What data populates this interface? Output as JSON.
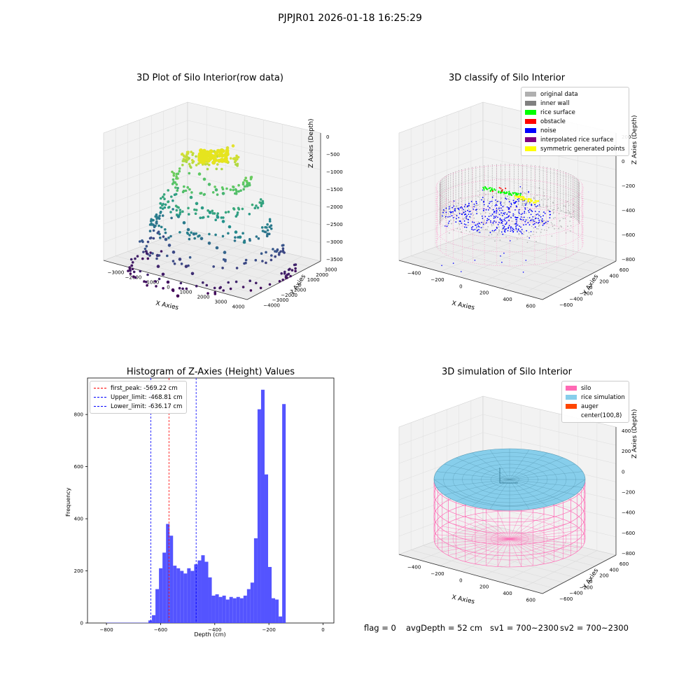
{
  "figure": {
    "suptitle": "PJPJR01 2026-01-18 16:25:29",
    "status": {
      "flag": "flag = 0",
      "avg_depth": "avgDepth = 52 cm",
      "sv1": "sv1 = 700~2300",
      "sv2": "sv2 = 700~2300"
    }
  },
  "colors": {
    "original_data": "#b0b0b0",
    "inner_wall": "#808080",
    "rice_surface": "#00ff00",
    "obstacle": "#ff0000",
    "noise": "#0000ff",
    "interpolated_rice_surface": "#800080",
    "symmetric_generated_points": "#ffff00",
    "silo": "#ff69b4",
    "rice_simulation": "#87ceeb",
    "auger": "#ff4500",
    "histogram_bar": "#4b4bff",
    "first_peak_line": "#ff0000",
    "limit_line": "#0000ff"
  },
  "chart_data": [
    {
      "type": "scatter",
      "title": "3D Plot of Silo Interior(row data)",
      "xlabel": "X Axies",
      "ylabel": "Y Axies",
      "zlabel": "Z Axies (Depth)",
      "x_ticks": [
        "−3000",
        "−2000",
        "−1000",
        "0",
        "1000",
        "2000",
        "3000",
        "4000"
      ],
      "y_ticks": [
        "−4000",
        "−3000",
        "−2000",
        "−1000",
        "0",
        "1000",
        "2000",
        "3000"
      ],
      "z_ticks": [
        "−3500",
        "−3000",
        "−2500",
        "−2000",
        "−1500",
        "−1000",
        "−500",
        "0"
      ],
      "colormap": "viridis",
      "points": [
        [
          -300,
          600,
          -300
        ],
        [
          0,
          700,
          -250
        ],
        [
          200,
          800,
          -200
        ],
        [
          400,
          900,
          -150
        ],
        [
          -100,
          500,
          -400
        ],
        [
          -800,
          300,
          -900
        ],
        [
          -500,
          200,
          -1000
        ],
        [
          -200,
          100,
          -1100
        ],
        [
          200,
          0,
          -1200
        ],
        [
          600,
          -100,
          -1250
        ],
        [
          -1000,
          0,
          -1500
        ],
        [
          -600,
          -200,
          -1600
        ],
        [
          -200,
          -400,
          -1650
        ],
        [
          300,
          -600,
          -1700
        ],
        [
          800,
          -800,
          -1750
        ],
        [
          1200,
          -1000,
          -1800
        ],
        [
          1700,
          -1300,
          -1850
        ],
        [
          2200,
          -1600,
          -1900
        ],
        [
          2600,
          -1900,
          -1950
        ],
        [
          3000,
          -2200,
          -2000
        ],
        [
          -1400,
          -300,
          -2000
        ],
        [
          -1000,
          -500,
          -2100
        ],
        [
          -600,
          -800,
          -2200
        ],
        [
          -200,
          -1000,
          -2250
        ],
        [
          300,
          -1200,
          -2300
        ],
        [
          800,
          -1400,
          -2350
        ],
        [
          1300,
          -1600,
          -2400
        ],
        [
          1800,
          -1800,
          -2450
        ],
        [
          -1800,
          -600,
          -2600
        ],
        [
          -1500,
          -800,
          -2700
        ],
        [
          -1100,
          -1100,
          -2800
        ],
        [
          -600,
          -1400,
          -2900
        ],
        [
          -100,
          -1700,
          -3000
        ],
        [
          400,
          -2000,
          -3100
        ],
        [
          -2000,
          -900,
          -3000
        ],
        [
          -1700,
          -1300,
          -3200
        ],
        [
          -1200,
          -1700,
          -3300
        ],
        [
          -700,
          -2100,
          -3400
        ],
        [
          -200,
          -2500,
          -3500
        ],
        [
          300,
          -2900,
          -3550
        ]
      ]
    },
    {
      "type": "scatter",
      "title": "3D classify of Silo Interior",
      "xlabel": "X Axies",
      "ylabel": "Y Axies",
      "zlabel": "Z Axies (Depth)",
      "x_ticks": [
        "−400",
        "−200",
        "0",
        "200",
        "400",
        "600"
      ],
      "y_ticks": [
        "−600",
        "−400",
        "−200",
        "0",
        "200",
        "400",
        "600"
      ],
      "z_ticks": [
        "−800",
        "−600",
        "−400",
        "−200",
        "0",
        "200"
      ],
      "legend": [
        {
          "label": "original data",
          "color_key": "original_data"
        },
        {
          "label": "inner wall",
          "color_key": "inner_wall"
        },
        {
          "label": "rice surface",
          "color_key": "rice_surface"
        },
        {
          "label": "obstacle",
          "color_key": "obstacle"
        },
        {
          "label": "noise",
          "color_key": "noise"
        },
        {
          "label": "interpolated rice surface",
          "color_key": "interpolated_rice_surface"
        },
        {
          "label": "symmetric generated points",
          "color_key": "symmetric_generated_points"
        }
      ]
    },
    {
      "type": "bar",
      "title": "Histogram of Z-Axies (Height) Values",
      "xlabel": "Depth (cm)",
      "ylabel": "Frequency",
      "xlim": [
        -870,
        40
      ],
      "ylim": [
        0,
        940
      ],
      "x_ticks": [
        -800,
        -600,
        -400,
        -200,
        0
      ],
      "x_tick_labels": [
        "−800",
        "−600",
        "−400",
        "−200",
        "0"
      ],
      "y_ticks": [
        0,
        200,
        400,
        600,
        800
      ],
      "bin_start": -645,
      "bin_width": 13,
      "values": [
        10,
        30,
        130,
        210,
        270,
        380,
        335,
        220,
        210,
        200,
        190,
        210,
        200,
        225,
        240,
        260,
        235,
        175,
        105,
        110,
        100,
        105,
        90,
        100,
        95,
        100,
        95,
        105,
        130,
        155,
        325,
        820,
        895,
        570,
        215,
        95,
        90,
        25,
        840
      ],
      "tail": {
        "from": -800,
        "to": -645,
        "value": 1
      },
      "lines": [
        {
          "label": "first_peak: -569.22 cm",
          "x": -569.22,
          "color_key": "first_peak_line"
        },
        {
          "label": "Upper_limit: -468.81 cm",
          "x": -468.81,
          "color_key": "limit_line"
        },
        {
          "label": "Lower_limit: -636.17 cm",
          "x": -636.17,
          "color_key": "limit_line"
        }
      ]
    },
    {
      "type": "area",
      "title": "3D simulation of Silo Interior",
      "xlabel": "X Axies",
      "ylabel": "Y Axies",
      "zlabel": "Z Axies (Depth)",
      "x_ticks": [
        "−400",
        "−200",
        "0",
        "200",
        "400",
        "600"
      ],
      "y_ticks": [
        "−600",
        "−400",
        "−200",
        "0",
        "200",
        "400",
        "600"
      ],
      "z_ticks": [
        "−800",
        "−600",
        "−400",
        "−200",
        "0",
        "200",
        "400"
      ],
      "legend": [
        {
          "label": "silo",
          "color_key": "silo"
        },
        {
          "label": "rice simulation",
          "color_key": "rice_simulation"
        },
        {
          "label": "auger",
          "color_key": "auger"
        },
        {
          "label": "center(100,8)",
          "color_key": ""
        }
      ]
    }
  ]
}
